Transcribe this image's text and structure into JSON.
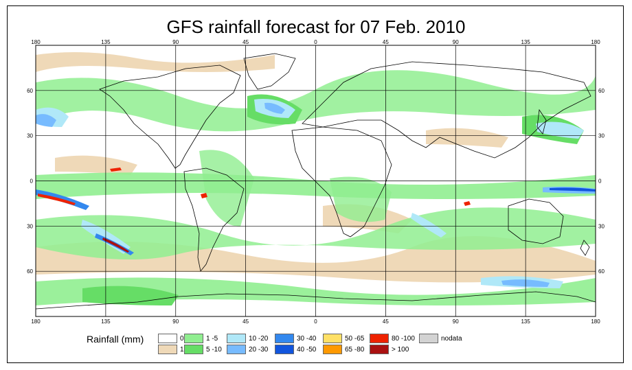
{
  "title": "GFS rainfall forecast for 07 Feb. 2010",
  "axes": {
    "lon_ticks": [
      "180",
      "135",
      "90",
      "45",
      "0",
      "45",
      "90",
      "135",
      "180"
    ],
    "lat_ticks": [
      "60",
      "30",
      "0",
      "30",
      "60"
    ]
  },
  "legend": {
    "title": "Rainfall (mm)",
    "items": [
      {
        "label": "0",
        "color": "#ffffff"
      },
      {
        "label": "1",
        "color": "#efd9b8"
      },
      {
        "label": "1 -5",
        "color": "#90ee90"
      },
      {
        "label": "5 -10",
        "color": "#66dd66"
      },
      {
        "label": "10 -20",
        "color": "#b0e8f8"
      },
      {
        "label": "20 -30",
        "color": "#77bbff"
      },
      {
        "label": "30 -40",
        "color": "#3388ee"
      },
      {
        "label": "40 -50",
        "color": "#1155dd"
      },
      {
        "label": "50 -65",
        "color": "#ffe066"
      },
      {
        "label": "65 -80",
        "color": "#ff9900"
      },
      {
        "label": "80 -100",
        "color": "#ee2200"
      },
      {
        "label": "> 100",
        "color": "#aa1111"
      },
      {
        "label": "nodata",
        "color": "#d3d3d3"
      }
    ]
  }
}
